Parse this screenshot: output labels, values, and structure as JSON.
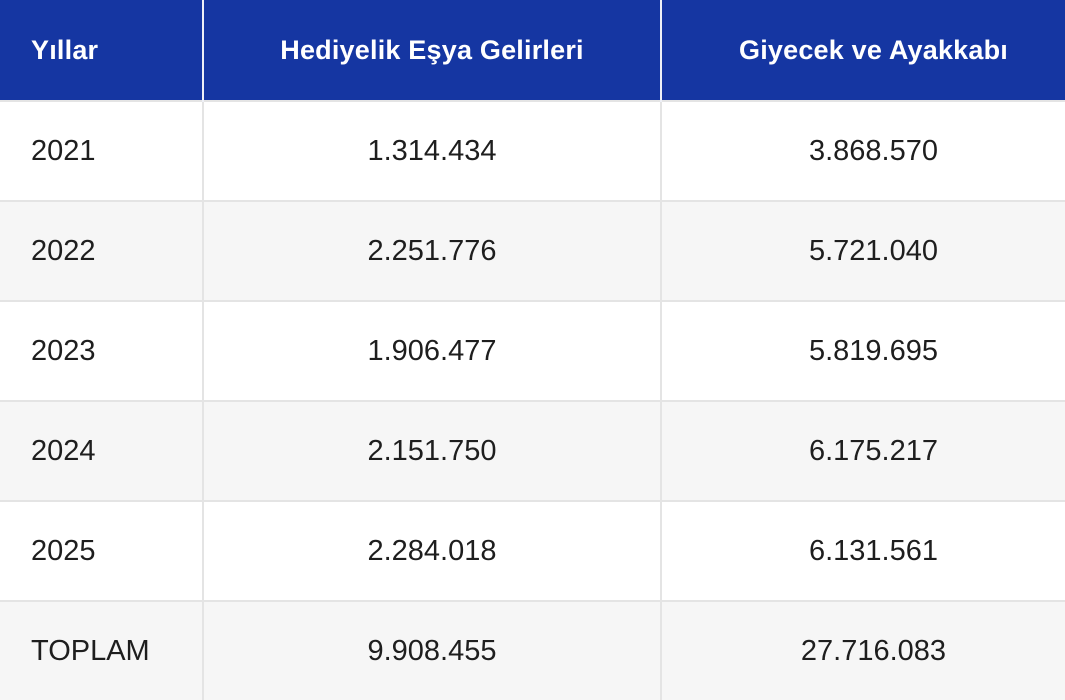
{
  "table": {
    "columns": [
      "Yıllar",
      "Hediyelik Eşya Gelirleri",
      "Giyecek ve Ayakkabı"
    ],
    "rows": [
      [
        "2021",
        "1.314.434",
        "3.868.570"
      ],
      [
        "2022",
        "2.251.776",
        "5.721.040"
      ],
      [
        "2023",
        "1.906.477",
        "5.819.695"
      ],
      [
        "2024",
        "2.151.750",
        "6.175.217"
      ],
      [
        "2025",
        "2.284.018",
        "6.131.561"
      ]
    ],
    "total_row": [
      "TOPLAM",
      "9.908.455",
      "27.716.083"
    ],
    "colors": {
      "header_bg": "#1536a2",
      "header_text": "#ffffff",
      "row_bg": "#ffffff",
      "row_alt_bg": "#f6f6f6",
      "border": "#e4e4e4",
      "body_text": "#1e1e1e"
    }
  },
  "chart_data": {
    "type": "table",
    "columns": [
      "Yıllar",
      "Hediyelik Eşya Gelirleri",
      "Giyecek ve Ayakkabı"
    ],
    "rows": [
      [
        "2021",
        1314434,
        3868570
      ],
      [
        "2022",
        2251776,
        5721040
      ],
      [
        "2023",
        1906477,
        5819695
      ],
      [
        "2024",
        2151750,
        6175217
      ],
      [
        "2025",
        2284018,
        6131561
      ],
      [
        "TOPLAM",
        9908455,
        27716083
      ]
    ]
  }
}
